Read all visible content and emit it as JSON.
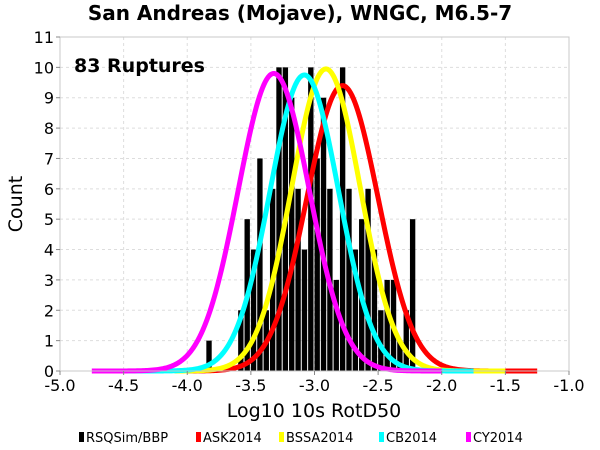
{
  "chart_data": {
    "type": "bar",
    "title": "San Andreas (Mojave), WNGC, M6.5-7",
    "xlabel": "Log10 10s RotD50",
    "ylabel": "Count",
    "annotation": "83 Ruptures",
    "xlim": [
      -5.0,
      -1.0
    ],
    "ylim": [
      0,
      11
    ],
    "x_ticks": [
      "-5.0",
      "-4.5",
      "-4.0",
      "-3.5",
      "-3.0",
      "-2.5",
      "-2.0",
      "-1.5",
      "-1.0"
    ],
    "y_ticks": [
      "0",
      "1",
      "2",
      "3",
      "4",
      "5",
      "6",
      "7",
      "8",
      "9",
      "10",
      "11"
    ],
    "grid": true,
    "legend_position": "bottom",
    "histogram": {
      "name": "RSQSim/BBP",
      "color": "#000000",
      "bin_width": 0.05,
      "bin_starts": [
        -3.85,
        -3.6,
        -3.55,
        -3.5,
        -3.45,
        -3.4,
        -3.35,
        -3.3,
        -3.25,
        -3.2,
        -3.15,
        -3.1,
        -3.05,
        -3.0,
        -2.95,
        -2.9,
        -2.85,
        -2.8,
        -2.75,
        -2.7,
        -2.65,
        -2.6,
        -2.55,
        -2.5,
        -2.45,
        -2.4,
        -2.35,
        -2.3,
        -2.25
      ],
      "counts": [
        1,
        2,
        5,
        4,
        7,
        2,
        6,
        10,
        10,
        9,
        6,
        4,
        10,
        7,
        9,
        6,
        3,
        10,
        6,
        4,
        5,
        6,
        4,
        2,
        3,
        3,
        1,
        2,
        5
      ]
    },
    "series": [
      {
        "name": "ASK2014",
        "color": "#ff0000",
        "mean": -2.78,
        "sd": 0.28,
        "peak": 9.4,
        "x_range": [
          -4.0,
          -1.25
        ]
      },
      {
        "name": "BSSA2014",
        "color": "#ffff00",
        "mean": -2.91,
        "sd": 0.27,
        "peak": 9.95,
        "x_range": [
          -4.1,
          -1.5
        ]
      },
      {
        "name": "CB2014",
        "color": "#00ffff",
        "mean": -3.08,
        "sd": 0.27,
        "peak": 9.75,
        "x_range": [
          -4.5,
          -1.75
        ]
      },
      {
        "name": "CY2014",
        "color": "#ff00ff",
        "mean": -3.32,
        "sd": 0.28,
        "peak": 9.8,
        "x_range": [
          -4.75,
          -2.0
        ]
      }
    ]
  }
}
